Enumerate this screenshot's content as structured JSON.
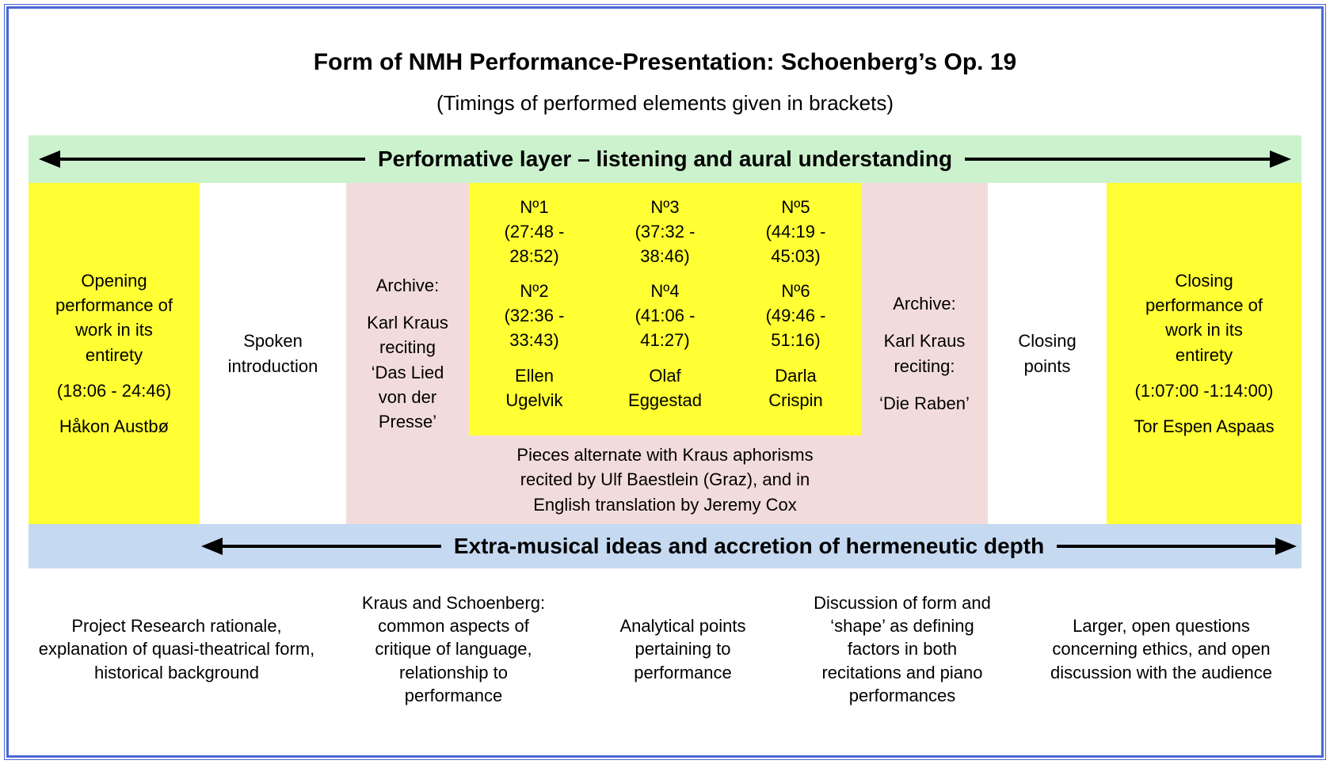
{
  "page": {
    "title": "Form of NMH Performance-Presentation: Schoenberg’s Op. 19",
    "subtitle": "(Timings of performed elements given in brackets)"
  },
  "bands": {
    "performative": "Performative layer – listening and aural understanding",
    "hermeneutic": "Extra-musical ideas and accretion of hermeneutic depth"
  },
  "timeline": {
    "opening": {
      "description": "Opening performance of work in its entirety",
      "timing": "(18:06 - 24:46)",
      "performer": "Håkon Austbø"
    },
    "spoken_introduction": "Spoken introduction",
    "archive_left": {
      "label": "Archive:",
      "description": "Karl Kraus reciting ‘Das Lied von der Presse’"
    },
    "pieces": {
      "columns": [
        {
          "no_a": "Nº1",
          "timing_a": "(27:48 - 28:52)",
          "no_b": "Nº2",
          "timing_b": "(32:36 - 33:43)",
          "performer": "Ellen Ugelvik"
        },
        {
          "no_a": "Nº3",
          "timing_a": "(37:32 - 38:46)",
          "no_b": "Nº4",
          "timing_b": "(41:06 - 41:27)",
          "performer": "Olaf Eggestad"
        },
        {
          "no_a": "Nº5",
          "timing_a": "(44:19 - 45:03)",
          "no_b": "Nº6",
          "timing_b": "(49:46 - 51:16)",
          "performer": "Darla Crispin"
        }
      ],
      "caption": "Pieces alternate with Kraus aphorisms recited by Ulf Baestlein (Graz), and in English translation by Jeremy Cox"
    },
    "archive_right": {
      "label": "Archive:",
      "description": "Karl Kraus reciting:",
      "work": "‘Die Raben’"
    },
    "closing_points": "Closing points",
    "closing": {
      "description": "Closing performance of work in its entirety",
      "timing": "(1:07:00 -1:14:00)",
      "performer": "Tor Espen Aspaas"
    }
  },
  "notes": [
    "Project Research rationale, explanation of quasi-theatrical form, historical background",
    "Kraus and Schoenberg: common aspects of critique of language, relationship to performance",
    "Analytical points pertaining to performance",
    "Discussion of form and ‘shape’ as defining factors in both recitations and piano performances",
    "Larger, open questions concerning ethics, and open discussion with the audience"
  ],
  "colors": {
    "performative_band": "#CBF2CD",
    "hermeneutic_band": "#C5D9F1",
    "performance_highlight": "#FFFF33",
    "archive_highlight": "#F2DCDB",
    "frame_border": "#4A66D6"
  }
}
